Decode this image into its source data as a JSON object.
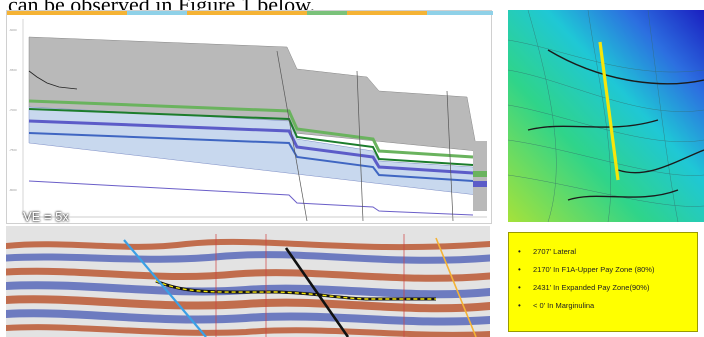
{
  "intro": {
    "text": "can be observed in Figure 1 below."
  },
  "cross_section": {
    "ve_label": "VE = 5x"
  },
  "stats": {
    "items": [
      "2707’ Lateral",
      "2170’ In F1A-Upper Pay Zone (80%)",
      "2431’ In Expanded Pay Zone(90%)",
      "< 0’ In Marginulina"
    ]
  },
  "colors": {
    "highlight_box": "#ffff00",
    "wellbore": "#f5e60a",
    "seismic_peak": "#b5451b",
    "seismic_trough": "#3a4fb0"
  }
}
